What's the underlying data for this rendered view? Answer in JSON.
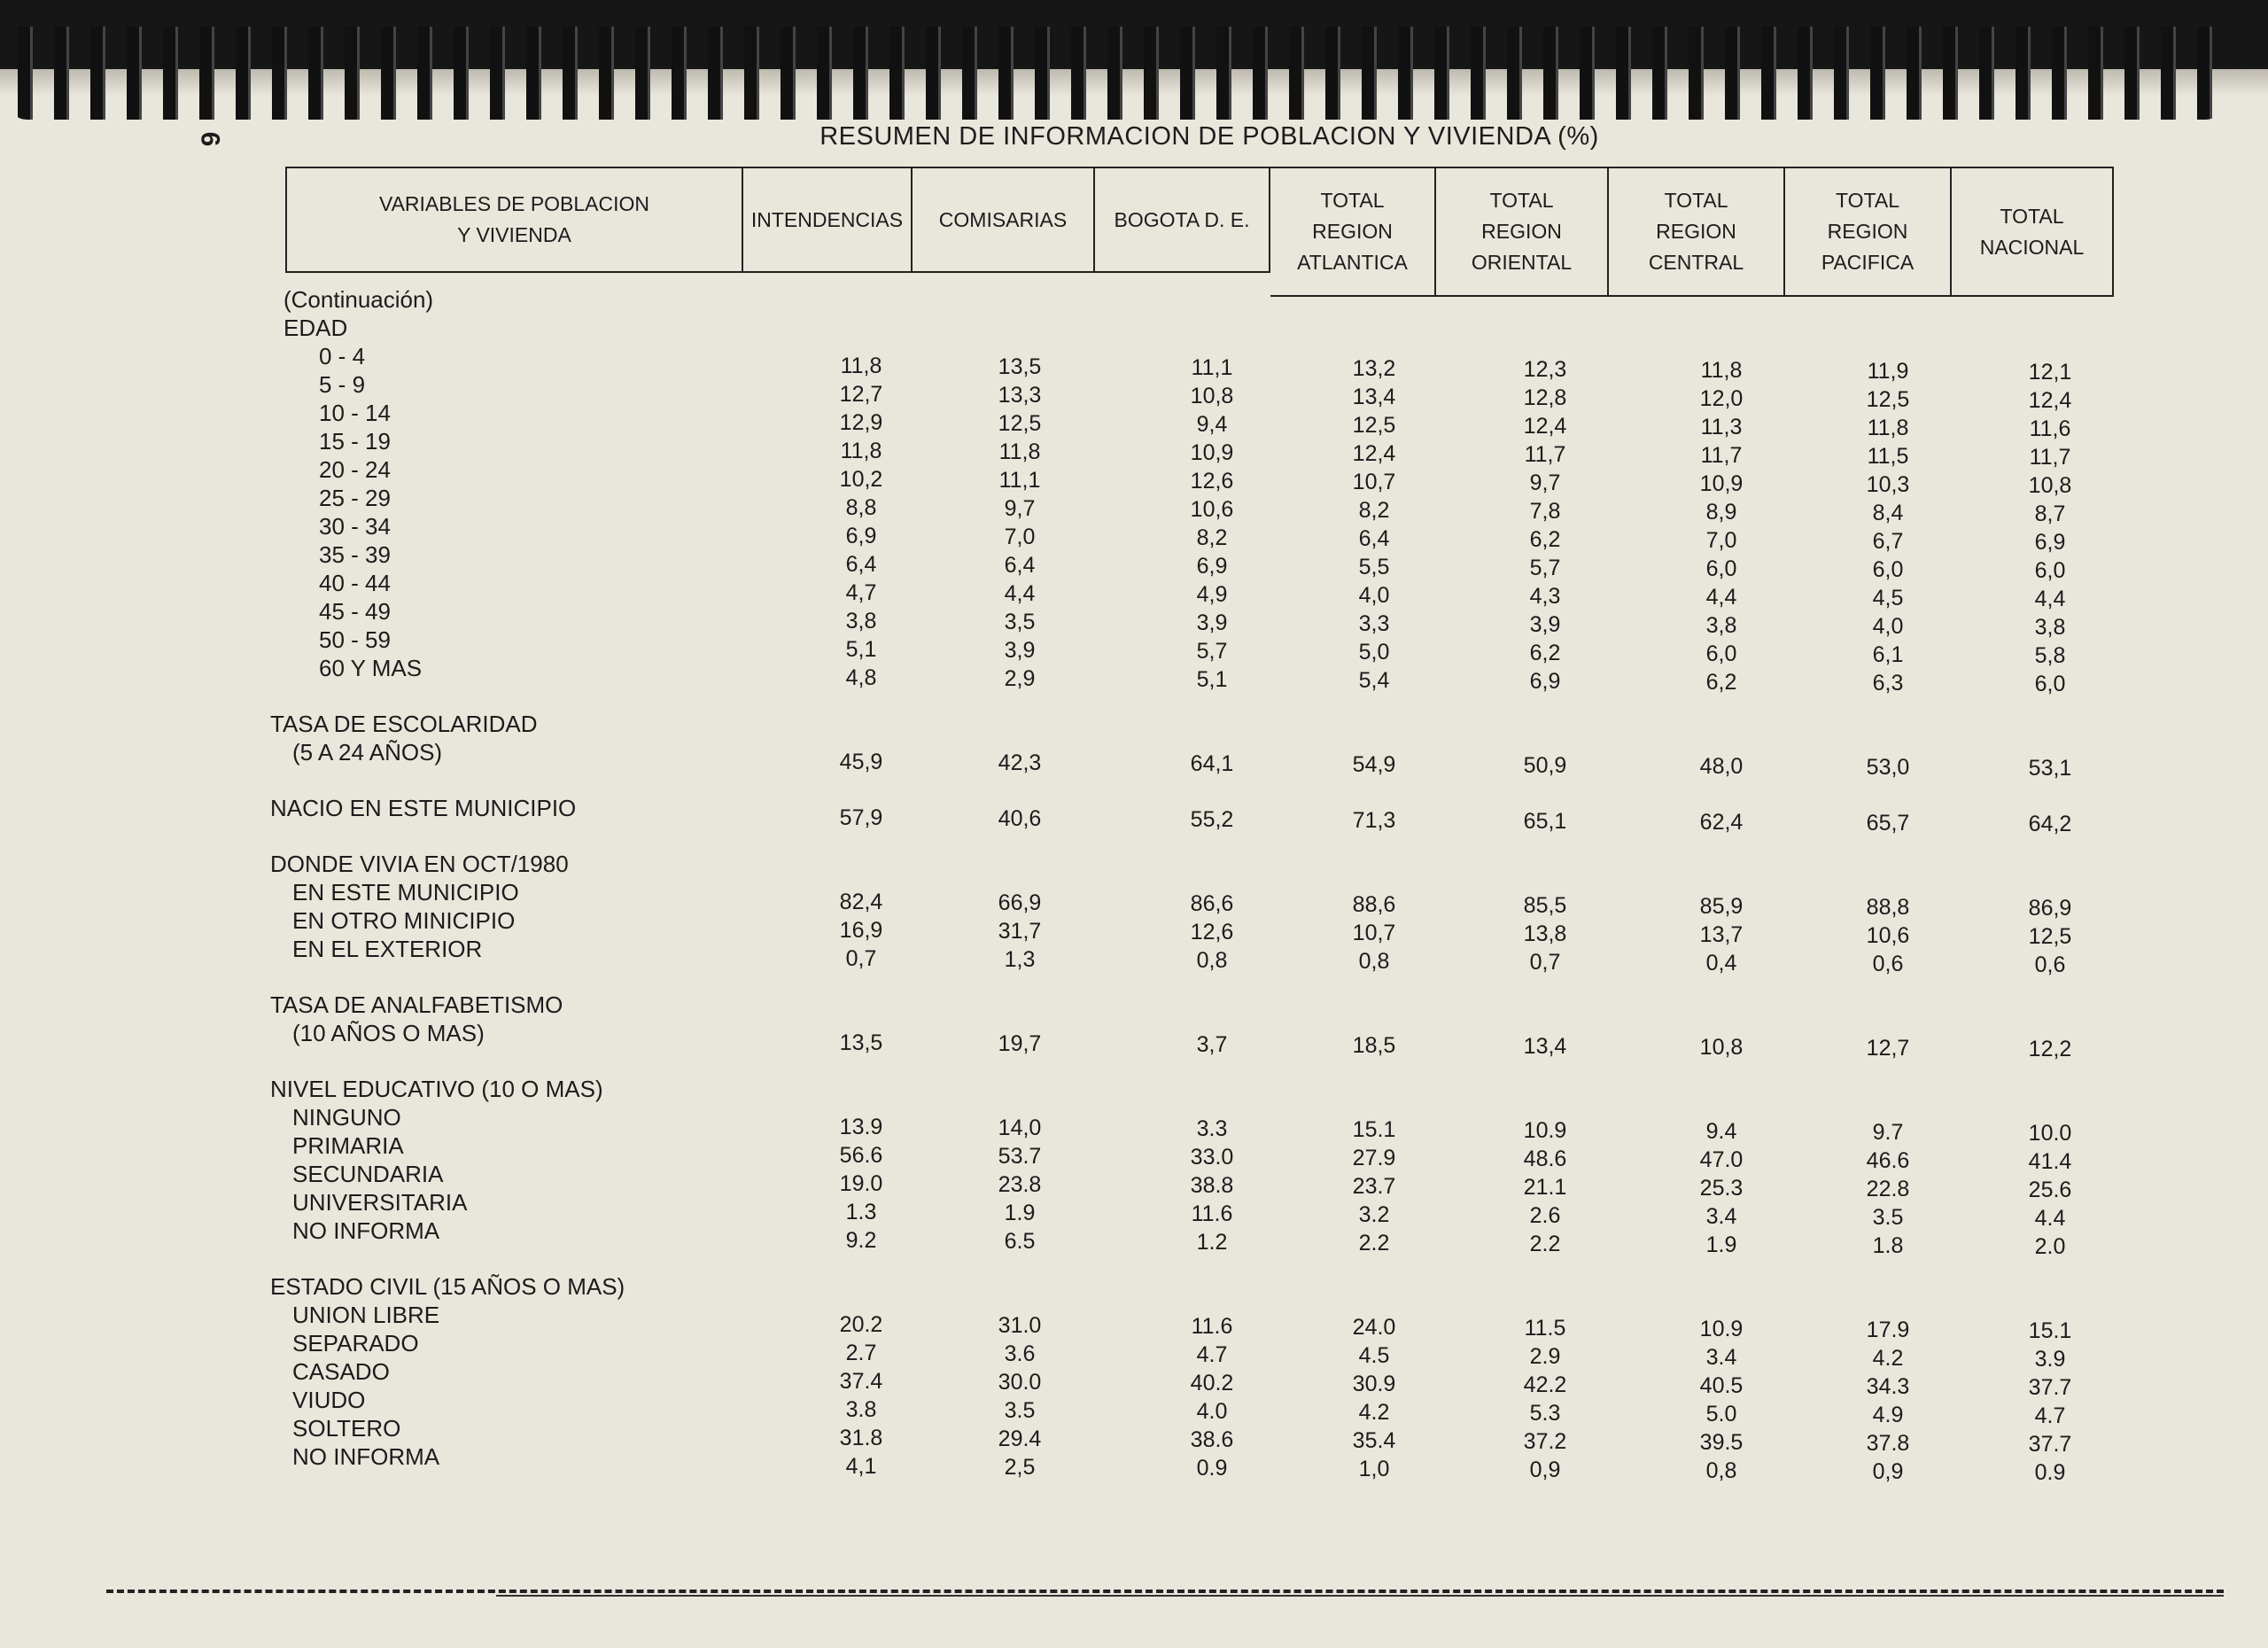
{
  "page_number": "6",
  "title": "RESUMEN DE INFORMACION DE POBLACION Y VIVIENDA (%)",
  "columns": [
    "VARIABLES DE POBLACION\nY VIVIENDA",
    "INTENDENCIAS",
    "COMISARIAS",
    "BOGOTA D. E.",
    "TOTAL\nREGION\nATLANTICA",
    "TOTAL\nREGION\nORIENTAL",
    "TOTAL\nREGION\nCENTRAL",
    "TOTAL\nREGION\nPACIFICA",
    "TOTAL\nNACIONAL"
  ],
  "sections": [
    {
      "headings": [
        "(Continuación)",
        "EDAD"
      ],
      "rows": [
        {
          "label": "0 - 4",
          "values": [
            "11,8",
            "13,5",
            "11,1",
            "13,2",
            "12,3",
            "11,8",
            "11,9",
            "12,1"
          ]
        },
        {
          "label": "5 - 9",
          "values": [
            "12,7",
            "13,3",
            "10,8",
            "13,4",
            "12,8",
            "12,0",
            "12,5",
            "12,4"
          ]
        },
        {
          "label": "10 - 14",
          "values": [
            "12,9",
            "12,5",
            "9,4",
            "12,5",
            "12,4",
            "11,3",
            "11,8",
            "11,6"
          ]
        },
        {
          "label": "15 - 19",
          "values": [
            "11,8",
            "11,8",
            "10,9",
            "12,4",
            "11,7",
            "11,7",
            "11,5",
            "11,7"
          ]
        },
        {
          "label": "20 - 24",
          "values": [
            "10,2",
            "11,1",
            "12,6",
            "10,7",
            "9,7",
            "10,9",
            "10,3",
            "10,8"
          ]
        },
        {
          "label": "25 - 29",
          "values": [
            "8,8",
            "9,7",
            "10,6",
            "8,2",
            "7,8",
            "8,9",
            "8,4",
            "8,7"
          ]
        },
        {
          "label": "30 - 34",
          "values": [
            "6,9",
            "7,0",
            "8,2",
            "6,4",
            "6,2",
            "7,0",
            "6,7",
            "6,9"
          ]
        },
        {
          "label": "35 - 39",
          "values": [
            "6,4",
            "6,4",
            "6,9",
            "5,5",
            "5,7",
            "6,0",
            "6,0",
            "6,0"
          ]
        },
        {
          "label": "40 - 44",
          "values": [
            "4,7",
            "4,4",
            "4,9",
            "4,0",
            "4,3",
            "4,4",
            "4,5",
            "4,4"
          ]
        },
        {
          "label": "45 - 49",
          "values": [
            "3,8",
            "3,5",
            "3,9",
            "3,3",
            "3,9",
            "3,8",
            "4,0",
            "3,8"
          ]
        },
        {
          "label": "50 - 59",
          "values": [
            "5,1",
            "3,9",
            "5,7",
            "5,0",
            "6,2",
            "6,0",
            "6,1",
            "5,8"
          ]
        },
        {
          "label": "60 Y MAS",
          "values": [
            "4,8",
            "2,9",
            "5,1",
            "5,4",
            "6,9",
            "6,2",
            "6,3",
            "6,0"
          ]
        }
      ]
    },
    {
      "headings": [
        "TASA DE ESCOLARIDAD"
      ],
      "rows": [
        {
          "label": "(5 A 24 AÑOS)",
          "values": [
            "45,9",
            "42,3",
            "64,1",
            "54,9",
            "50,9",
            "48,0",
            "53,0",
            "53,1"
          ]
        }
      ]
    },
    {
      "headings": [],
      "rows": [
        {
          "label": "NACIO EN ESTE MUNICIPIO",
          "values": [
            "57,9",
            "40,6",
            "55,2",
            "71,3",
            "65,1",
            "62,4",
            "65,7",
            "64,2"
          ]
        }
      ]
    },
    {
      "headings": [
        "DONDE VIVIA EN OCT/1980"
      ],
      "rows": [
        {
          "label": "EN ESTE MUNICIPIO",
          "values": [
            "82,4",
            "66,9",
            "86,6",
            "88,6",
            "85,5",
            "85,9",
            "88,8",
            "86,9"
          ]
        },
        {
          "label": "EN OTRO MINICIPIO",
          "values": [
            "16,9",
            "31,7",
            "12,6",
            "10,7",
            "13,8",
            "13,7",
            "10,6",
            "12,5"
          ]
        },
        {
          "label": "EN EL EXTERIOR",
          "values": [
            "0,7",
            "1,3",
            "0,8",
            "0,8",
            "0,7",
            "0,4",
            "0,6",
            "0,6"
          ]
        }
      ]
    },
    {
      "headings": [
        "TASA DE ANALFABETISMO"
      ],
      "rows": [
        {
          "label": "(10   AÑOS O MAS)",
          "values": [
            "13,5",
            "19,7",
            "3,7",
            "18,5",
            "13,4",
            "10,8",
            "12,7",
            "12,2"
          ]
        }
      ]
    },
    {
      "headings": [
        "NIVEL EDUCATIVO (10 O MAS)"
      ],
      "rows": [
        {
          "label": "NINGUNO",
          "values": [
            "13.9",
            "14,0",
            "3.3",
            "15.1",
            "10.9",
            "9.4",
            "9.7",
            "10.0"
          ]
        },
        {
          "label": "PRIMARIA",
          "values": [
            "56.6",
            "53.7",
            "33.0",
            "27.9",
            "48.6",
            "47.0",
            "46.6",
            "41.4"
          ]
        },
        {
          "label": "SECUNDARIA",
          "values": [
            "19.0",
            "23.8",
            "38.8",
            "23.7",
            "21.1",
            "25.3",
            "22.8",
            "25.6"
          ]
        },
        {
          "label": "UNIVERSITARIA",
          "values": [
            "1.3",
            "1.9",
            "11.6",
            "3.2",
            "2.6",
            "3.4",
            "3.5",
            "4.4"
          ]
        },
        {
          "label": "NO INFORMA",
          "values": [
            "9.2",
            "6.5",
            "1.2",
            "2.2",
            "2.2",
            "1.9",
            "1.8",
            "2.0"
          ]
        }
      ]
    },
    {
      "headings": [
        "ESTADO CIVIL (15 AÑOS O MAS)"
      ],
      "rows": [
        {
          "label": "UNION LIBRE",
          "values": [
            "20.2",
            "31.0",
            "11.6",
            "24.0",
            "11.5",
            "10.9",
            "17.9",
            "15.1"
          ]
        },
        {
          "label": "SEPARADO",
          "values": [
            "2.7",
            "3.6",
            "4.7",
            "4.5",
            "2.9",
            "3.4",
            "4.2",
            "3.9"
          ]
        },
        {
          "label": "CASADO",
          "values": [
            "37.4",
            "30.0",
            "40.2",
            "30.9",
            "42.2",
            "40.5",
            "34.3",
            "37.7"
          ]
        },
        {
          "label": "VIUDO",
          "values": [
            "3.8",
            "3.5",
            "4.0",
            "4.2",
            "5.3",
            "5.0",
            "4.9",
            "4.7"
          ]
        },
        {
          "label": "SOLTERO",
          "values": [
            "31.8",
            "29.4",
            "38.6",
            "35.4",
            "37.2",
            "39.5",
            "37.8",
            "37.7"
          ]
        },
        {
          "label": "NO INFORMA",
          "values": [
            "4,1",
            "2,5",
            "0.9",
            "1,0",
            "0,9",
            "0,8",
            "0,9",
            "0.9"
          ]
        }
      ]
    }
  ]
}
